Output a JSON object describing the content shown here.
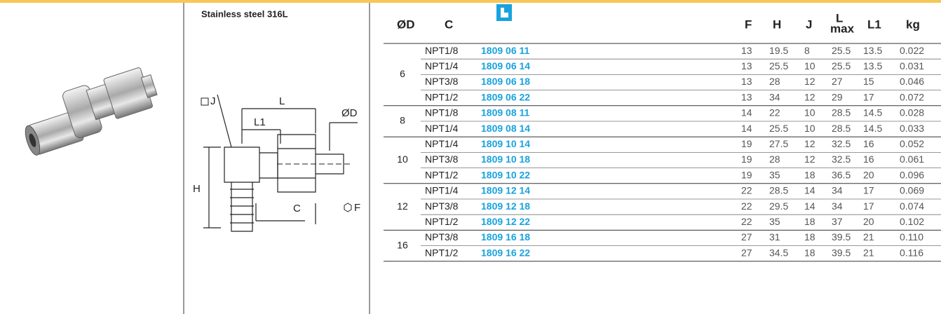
{
  "caption": "Stainless steel 316L",
  "drawing": {
    "labels": {
      "j": "J",
      "l": "L",
      "d": "ØD",
      "l1": "L1",
      "h": "H",
      "c": "C",
      "f": "F"
    }
  },
  "table": {
    "headers": {
      "d": "ØD",
      "c": "C",
      "f": "F",
      "h": "H",
      "j": "J",
      "l": "L",
      "lsub": "max",
      "l1": "L1",
      "kg": "kg"
    },
    "groups": [
      {
        "d": "6",
        "rows": [
          [
            "NPT1/8",
            "1809 06 11",
            "13",
            "19.5",
            "8",
            "25.5",
            "13.5",
            "0.022"
          ],
          [
            "NPT1/4",
            "1809 06 14",
            "13",
            "25.5",
            "10",
            "25.5",
            "13.5",
            "0.031"
          ],
          [
            "NPT3/8",
            "1809 06 18",
            "13",
            "28",
            "12",
            "27",
            "15",
            "0.046"
          ],
          [
            "NPT1/2",
            "1809 06 22",
            "13",
            "34",
            "12",
            "29",
            "17",
            "0.072"
          ]
        ]
      },
      {
        "d": "8",
        "rows": [
          [
            "NPT1/8",
            "1809 08 11",
            "14",
            "22",
            "10",
            "28.5",
            "14.5",
            "0.028"
          ],
          [
            "NPT1/4",
            "1809 08 14",
            "14",
            "25.5",
            "10",
            "28.5",
            "14.5",
            "0.033"
          ]
        ]
      },
      {
        "d": "10",
        "rows": [
          [
            "NPT1/4",
            "1809 10 14",
            "19",
            "27.5",
            "12",
            "32.5",
            "16",
            "0.052"
          ],
          [
            "NPT3/8",
            "1809 10 18",
            "19",
            "28",
            "12",
            "32.5",
            "16",
            "0.061"
          ],
          [
            "NPT1/2",
            "1809 10 22",
            "19",
            "35",
            "18",
            "36.5",
            "20",
            "0.096"
          ]
        ]
      },
      {
        "d": "12",
        "rows": [
          [
            "NPT1/4",
            "1809 12 14",
            "22",
            "28.5",
            "14",
            "34",
            "17",
            "0.069"
          ],
          [
            "NPT3/8",
            "1809 12 18",
            "22",
            "29.5",
            "14",
            "34",
            "17",
            "0.074"
          ],
          [
            "NPT1/2",
            "1809 12 22",
            "22",
            "35",
            "18",
            "37",
            "20",
            "0.102"
          ]
        ]
      },
      {
        "d": "16",
        "rows": [
          [
            "NPT3/8",
            "1809 16 18",
            "27",
            "31",
            "18",
            "39.5",
            "21",
            "0.110"
          ],
          [
            "NPT1/2",
            "1809 16 22",
            "27",
            "34.5",
            "18",
            "39.5",
            "21",
            "0.116"
          ]
        ]
      }
    ]
  }
}
